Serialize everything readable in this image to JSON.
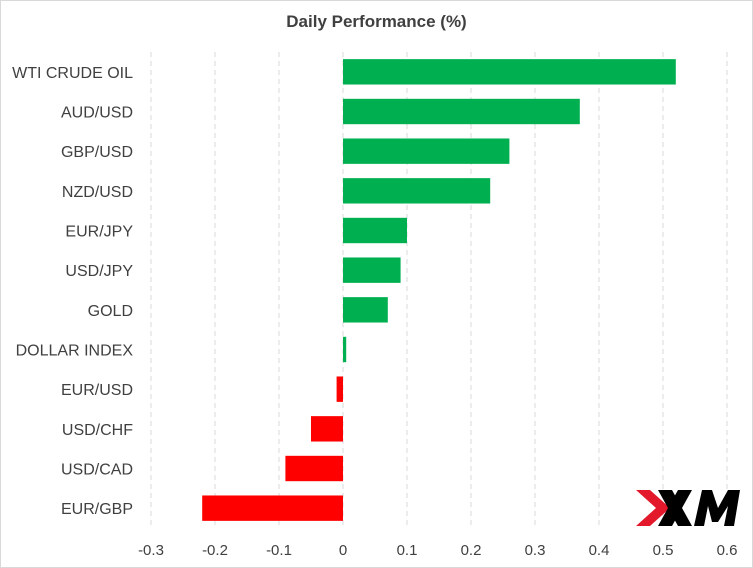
{
  "chart_data": {
    "type": "bar",
    "orientation": "horizontal",
    "title": "Daily Performance  (%)",
    "categories": [
      "WTI CRUDE OIL",
      "AUD/USD",
      "GBP/USD",
      "NZD/USD",
      "EUR/JPY",
      "USD/JPY",
      "GOLD",
      "DOLLAR INDEX",
      "EUR/USD",
      "USD/CHF",
      "USD/CAD",
      "EUR/GBP"
    ],
    "values": [
      0.52,
      0.37,
      0.26,
      0.23,
      0.1,
      0.09,
      0.07,
      0.005,
      -0.01,
      -0.05,
      -0.09,
      -0.22
    ],
    "xlim": [
      -0.3,
      0.6
    ],
    "xticks": [
      "-0.3",
      "-0.2",
      "-0.1",
      "0",
      "0.1",
      "0.2",
      "0.3",
      "0.4",
      "0.5",
      "0.6"
    ],
    "grid": "vertical dashed",
    "legend": "none",
    "colors": {
      "positive": "#00b050",
      "negative": "#ff0000",
      "grid": "#d9d9d9"
    }
  },
  "logo": {
    "name": "XM",
    "colors": {
      "red": "#e3192b",
      "black": "#000000"
    }
  }
}
